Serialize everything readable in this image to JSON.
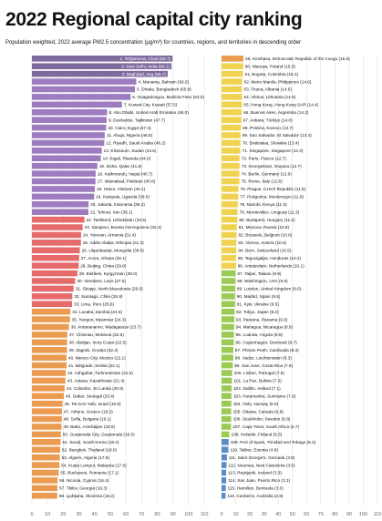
{
  "title": "2022 Regional capital city ranking",
  "subtitle": "Population weighted, 2022 average PM2.5 concentration (µg/m³) for countries, regions, and territories in descending order",
  "chart_data": {
    "type": "bar",
    "orientation": "horizontal",
    "panels": [
      {
        "xlim": [
          0,
          110
        ],
        "ticks": [
          "0",
          "10",
          "20",
          "30",
          "40",
          "50",
          "60",
          "70",
          "80",
          "90",
          "100",
          "110"
        ]
      },
      {
        "xlim": [
          0,
          110
        ],
        "ticks": [
          "0",
          "10",
          "20",
          "30",
          "40",
          "50",
          "60",
          "70",
          "80",
          "90",
          "100",
          "110"
        ]
      }
    ],
    "grid": true,
    "colors": {
      "hazardous": "#7e6b9e",
      "very_unhealthy": "#9d7cc0",
      "unhealthy": "#e66b6b",
      "sensitive": "#ec9c52",
      "moderate": "#f0d24f",
      "good": "#9ccb55",
      "who": "#5b8cc2"
    },
    "items": [
      {
        "label": "1. N'Djamena, Chad (89.7)",
        "value": 89.7
      },
      {
        "label": "2. New Delhi, India (89.1)",
        "value": 89.1
      },
      {
        "label": "3. Baghdad, Iraq (86.7)",
        "value": 86.7
      },
      {
        "label": "4. Manama, Bahrain (66.6)",
        "value": 66.6
      },
      {
        "label": "5. Dhaka, Bangladesh (65.8)",
        "value": 65.8
      },
      {
        "label": "6. Ouagadougou, Burkina Faso (63.0)",
        "value": 63.0
      },
      {
        "label": "7. Kuwait City, Kuwait (57.5)",
        "value": 57.5
      },
      {
        "label": "8. Abu Dhabi, United Arab Emirates (48.0)",
        "value": 48.0
      },
      {
        "label": "9. Dushanbe, Tajikistan (47.7)",
        "value": 47.7
      },
      {
        "label": "10. Cairo, Egypt (47.4)",
        "value": 47.4
      },
      {
        "label": "11. Abuja, Nigeria (46.5)",
        "value": 46.5
      },
      {
        "label": "12. Riyadh, Saudi Arabia (46.2)",
        "value": 46.2
      },
      {
        "label": "13. Khartoum, Sudan (44.6)",
        "value": 44.6
      },
      {
        "label": "14. Kigali, Rwanda (44.0)",
        "value": 44.0
      },
      {
        "label": "15. Doha, Qatar (41.8)",
        "value": 41.8
      },
      {
        "label": "16. Kathmandu, Nepal (40.7)",
        "value": 40.7
      },
      {
        "label": "17. Islamabad, Pakistan (40.6)",
        "value": 40.6
      },
      {
        "label": "18. Hanoi, Vietnam (40.1)",
        "value": 40.1
      },
      {
        "label": "19. Kampala, Uganda (39.6)",
        "value": 39.6
      },
      {
        "label": "20. Jakarta, Indonesia (36.2)",
        "value": 36.2
      },
      {
        "label": "21. Tehran, Iran (36.1)",
        "value": 36.1
      },
      {
        "label": "22. Tashkent, Uzbekistan (33.5)",
        "value": 33.5
      },
      {
        "label": "23. Sarajevo, Bosnia Herzegovina (32.4)",
        "value": 32.4
      },
      {
        "label": "24. Yerevan, Armenia (31.4)",
        "value": 31.4
      },
      {
        "label": "25. Addis Ababa, Ethiopia (31.3)",
        "value": 31.3
      },
      {
        "label": "26. Ulaanbaatar, Mongolia (30.6)",
        "value": 30.6
      },
      {
        "label": "27. Accra, Ghana (30.1)",
        "value": 30.1
      },
      {
        "label": "28. Beijing, China (29.8)",
        "value": 29.8
      },
      {
        "label": "29. Bishkek, Kyrgyzstan (29.0)",
        "value": 29.0
      },
      {
        "label": "30. Vientiane, Laos (27.6)",
        "value": 27.6
      },
      {
        "label": "31. Skopje, North Macedonia (26.6)",
        "value": 26.6
      },
      {
        "label": "32. Santiago, Chile (25.8)",
        "value": 25.8
      },
      {
        "label": "33. Lima, Peru (25.6)",
        "value": 25.6
      },
      {
        "label": "34. Lusaka, Zambia (24.6)",
        "value": 24.6
      },
      {
        "label": "35. Yangon, Myanmar (24.3)",
        "value": 24.3
      },
      {
        "label": "36. Antananarivo, Madagascar (23.7)",
        "value": 23.7
      },
      {
        "label": "37. Chisinau, Moldova (22.6)",
        "value": 22.6
      },
      {
        "label": "38. Abidjan, Ivory Coast (22.5)",
        "value": 22.5
      },
      {
        "label": "39. Zagreb, Croatia (22.4)",
        "value": 22.4
      },
      {
        "label": "40. Mexico City, Mexico (22.1)",
        "value": 22.1
      },
      {
        "label": "41. Belgrade, Serbia (22.1)",
        "value": 22.1
      },
      {
        "label": "42. Ashgabat, Turkmenistan (21.6)",
        "value": 21.6
      },
      {
        "label": "43. Astana, Kazakhstan (21.4)",
        "value": 21.4
      },
      {
        "label": "44. Colombo, Sri Lanka (20.9)",
        "value": 20.9
      },
      {
        "label": "45. Dakar, Senegal (20.4)",
        "value": 20.4
      },
      {
        "label": "46. Tel Aviv-Yafo, Israel (19.5)",
        "value": 19.5
      },
      {
        "label": "47. Athens, Greece (19.2)",
        "value": 19.2
      },
      {
        "label": "48. Sofia, Bulgaria (19.1)",
        "value": 19.1
      },
      {
        "label": "49. Baku, Azerbaijan (18.9)",
        "value": 18.9
      },
      {
        "label": "50. Guatemala City, Guatemala (18.5)",
        "value": 18.5
      },
      {
        "label": "51. Seoul, South Korea (18.3)",
        "value": 18.3
      },
      {
        "label": "52. Bangkok, Thailand (18.0)",
        "value": 18.0
      },
      {
        "label": "53. Algiers, Algeria (17.8)",
        "value": 17.8
      },
      {
        "label": "54. Kuala Lumpur, Malaysia (17.6)",
        "value": 17.6
      },
      {
        "label": "55. Bucharest, Romania (17.1)",
        "value": 17.1
      },
      {
        "label": "56. Nicosia, Cyprus (16.4)",
        "value": 16.4
      },
      {
        "label": "57. Tbilisi, Georgia (16.3)",
        "value": 16.3
      },
      {
        "label": "58. Ljubljana, Slovenia (16.2)",
        "value": 16.2
      },
      {
        "label": "59. Kinshasa, Democratic Republic of the Congo (15.5)",
        "value": 15.5
      },
      {
        "label": "60. Warsaw, Poland (15.3)",
        "value": 15.3
      },
      {
        "label": "61. Bogota, Colombia (15.1)",
        "value": 15.1
      },
      {
        "label": "62. Metro Manila, Philippines (14.6)",
        "value": 14.6
      },
      {
        "label": "63. Tirana, Albania (14.5)",
        "value": 14.5
      },
      {
        "label": "64. Vilnius, Lithuania (14.5)",
        "value": 14.5
      },
      {
        "label": "65. Hong Kong, Hong Kong SAR (14.4)",
        "value": 14.4
      },
      {
        "label": "66. Buenos Aires, Argentina (14.2)",
        "value": 14.2
      },
      {
        "label": "67. Ankara, Türkiye (14.0)",
        "value": 14.0
      },
      {
        "label": "68. Pristina, Kosovo (13.7)",
        "value": 13.7
      },
      {
        "label": "69. San Salvador, El Salvador (13.4)",
        "value": 13.4
      },
      {
        "label": "70. Bratislava, Slovakia (13.4)",
        "value": 13.4
      },
      {
        "label": "71. Singapore, Singapore (13.3)",
        "value": 13.3
      },
      {
        "label": "72. Paris, France (12.7)",
        "value": 12.7
      },
      {
        "label": "73. Georgetown, Guyana (12.7)",
        "value": 12.7
      },
      {
        "label": "74. Berlin, Germany (12.6)",
        "value": 12.6
      },
      {
        "label": "75. Rome, Italy (12.6)",
        "value": 12.6
      },
      {
        "label": "76. Prague, Czech Republic (11.9)",
        "value": 11.9
      },
      {
        "label": "77. Podgorica, Montenegro (11.8)",
        "value": 11.8
      },
      {
        "label": "78. Nairobi, Kenya (11.5)",
        "value": 11.5
      },
      {
        "label": "79. Montevideo, Uruguay (11.3)",
        "value": 11.3
      },
      {
        "label": "80. Budapest, Hungary (11.2)",
        "value": 11.2
      },
      {
        "label": "81. Moscow, Russia (10.8)",
        "value": 10.8
      },
      {
        "label": "82. Brussels, Belgium (10.6)",
        "value": 10.6
      },
      {
        "label": "83. Vienna, Austria (10.5)",
        "value": 10.5
      },
      {
        "label": "84. Bern, Switzerland (10.5)",
        "value": 10.5
      },
      {
        "label": "85. Tegucigalpa, Honduras (10.2)",
        "value": 10.2
      },
      {
        "label": "86. Amsterdam, Netherlands (10.1)",
        "value": 10.1
      },
      {
        "label": "87. Taipei, Taiwan (9.9)",
        "value": 9.9
      },
      {
        "label": "88. Washington, USA (9.8)",
        "value": 9.8
      },
      {
        "label": "89. London, United Kingdom (9.6)",
        "value": 9.6
      },
      {
        "label": "90. Madrid, Spain (9.5)",
        "value": 9.5
      },
      {
        "label": "91. Kyiv, Ukraine (9.5)",
        "value": 9.5
      },
      {
        "label": "92. Tokyo, Japan (9.2)",
        "value": 9.2
      },
      {
        "label": "93. Panama, Panama (9.0)",
        "value": 9.0
      },
      {
        "label": "94. Managua, Nicaragua (8.9)",
        "value": 8.9
      },
      {
        "label": "95. Luanda, Angola (8.8)",
        "value": 8.8
      },
      {
        "label": "96. Copenhagen, Denmark (8.7)",
        "value": 8.7
      },
      {
        "label": "97. Phnom Penh, Cambodia (8.3)",
        "value": 8.3
      },
      {
        "label": "98. Vaduz, Liechtenstein (8.3)",
        "value": 8.3
      },
      {
        "label": "99. San Jose, Costa Rica (7.9)",
        "value": 7.9
      },
      {
        "label": "100. Lisbon, Portugal (7.5)",
        "value": 7.5
      },
      {
        "label": "101. La Paz, Bolivia (7.3)",
        "value": 7.3
      },
      {
        "label": "102. Dublin, Ireland (7.1)",
        "value": 7.1
      },
      {
        "label": "103. Paramaribo, Suriname (7.0)",
        "value": 7.0
      },
      {
        "label": "104. Oslo, Norway (6.9)",
        "value": 6.9
      },
      {
        "label": "105. Ottawa, Canada (6.8)",
        "value": 6.8
      },
      {
        "label": "106. Stockholm, Sweden (6.8)",
        "value": 6.8
      },
      {
        "label": "107. Cape Town, South Africa (6.7)",
        "value": 6.7
      },
      {
        "label": "108. Helsinki, Finland (5.5)",
        "value": 5.5
      },
      {
        "label": "109. Port of Spain, Trinidad and Tobago (5.0)",
        "value": 5.0
      },
      {
        "label": "110. Tallinn, Estonia (4.8)",
        "value": 4.8
      },
      {
        "label": "111. Saint George's, Grenada (3.8)",
        "value": 3.8
      },
      {
        "label": "112. Noumea, New Caledonia (3.5)",
        "value": 3.5
      },
      {
        "label": "113. Reykjavik, Iceland (3.3)",
        "value": 3.3
      },
      {
        "label": "114. San Juan, Puerto Rico (3.3)",
        "value": 3.3
      },
      {
        "label": "115. Hamilton, Bermuda (3.0)",
        "value": 3.0
      },
      {
        "label": "116. Canberra, Australia (2.8)",
        "value": 2.8
      }
    ]
  }
}
